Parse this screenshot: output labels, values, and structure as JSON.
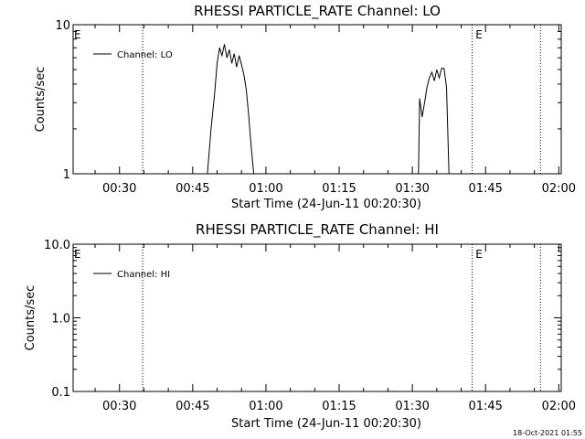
{
  "chart_data": [
    {
      "type": "line",
      "title": "RHESSI PARTICLE_RATE Channel: LO",
      "xlabel": "Start Time (24-Jun-11 00:20:30)",
      "ylabel": "Counts/sec",
      "y_scale": "log",
      "ylim": [
        1,
        10
      ],
      "y_ticks": [
        "10",
        "1"
      ],
      "x_ticks": [
        "00:30",
        "00:45",
        "01:00",
        "01:15",
        "01:30",
        "01:45",
        "02:00"
      ],
      "xlim": [
        "00:20:30",
        "02:00:30"
      ],
      "legend": {
        "position": "top-left"
      },
      "series": [
        {
          "name": "Channel: LO",
          "color": "#000000",
          "segments": [
            [
              [
                "00:48:00",
                1.0
              ],
              [
                "00:48:45",
                2.0
              ],
              [
                "00:49:30",
                3.5
              ],
              [
                "00:50:00",
                5.5
              ],
              [
                "00:50:30",
                7.0
              ],
              [
                "00:51:00",
                6.2
              ],
              [
                "00:51:30",
                7.4
              ],
              [
                "00:52:00",
                6.0
              ],
              [
                "00:52:30",
                6.8
              ],
              [
                "00:53:00",
                5.5
              ],
              [
                "00:53:30",
                6.4
              ],
              [
                "00:54:00",
                5.2
              ],
              [
                "00:54:30",
                6.2
              ],
              [
                "00:55:00",
                5.4
              ],
              [
                "00:55:30",
                4.6
              ],
              [
                "00:56:00",
                3.6
              ],
              [
                "00:56:30",
                2.4
              ],
              [
                "00:57:00",
                1.5
              ],
              [
                "00:57:30",
                1.0
              ]
            ],
            [
              [
                "01:31:15",
                1.0
              ],
              [
                "01:31:30",
                3.2
              ],
              [
                "01:32:00",
                2.4
              ],
              [
                "01:32:30",
                3.0
              ],
              [
                "01:33:00",
                3.8
              ],
              [
                "01:33:30",
                4.4
              ],
              [
                "01:34:00",
                4.8
              ],
              [
                "01:34:30",
                4.2
              ],
              [
                "01:35:00",
                5.0
              ],
              [
                "01:35:30",
                4.4
              ],
              [
                "01:36:00",
                5.1
              ],
              [
                "01:36:30",
                5.1
              ],
              [
                "01:37:00",
                3.8
              ],
              [
                "01:37:30",
                1.0
              ]
            ]
          ]
        }
      ],
      "annotations": [
        {
          "text": "E",
          "at": "00:20:30"
        },
        {
          "text": "E",
          "at": "01:42:45"
        }
      ],
      "vlines": [
        "00:34:45",
        "01:42:15",
        "01:56:15"
      ]
    },
    {
      "type": "line",
      "title": "RHESSI PARTICLE_RATE Channel: HI",
      "xlabel": "Start Time (24-Jun-11 00:20:30)",
      "ylabel": "Counts/sec",
      "y_scale": "log",
      "ylim": [
        0.1,
        10
      ],
      "y_ticks": [
        "10.0",
        "1.0",
        "0.1"
      ],
      "x_ticks": [
        "00:30",
        "00:45",
        "01:00",
        "01:15",
        "01:30",
        "01:45",
        "02:00"
      ],
      "xlim": [
        "00:20:30",
        "02:00:30"
      ],
      "legend": {
        "position": "top-left"
      },
      "series": [
        {
          "name": "Channel: HI",
          "color": "#000000",
          "segments": []
        }
      ],
      "annotations": [
        {
          "text": "E",
          "at": "00:20:30"
        },
        {
          "text": "E",
          "at": "01:42:45"
        }
      ],
      "vlines": [
        "00:34:45",
        "01:42:15",
        "01:56:15"
      ]
    }
  ],
  "footer": {
    "timestamp": "18-Oct-2021 01:55"
  }
}
